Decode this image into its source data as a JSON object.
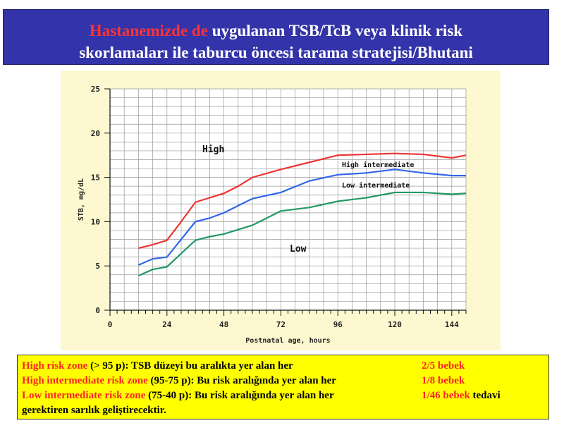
{
  "title": {
    "line1_red": "Hastanemizde de",
    "line1_rest": " uygulanan TSB/TcB veya klinik risk",
    "line2": "skorlamaları ile taburcu öncesi tarama stratejisi/Bhutani"
  },
  "chart_data": {
    "type": "line",
    "title": "",
    "xlabel": "Postnatal age, hours",
    "ylabel": "STB, mg/dL",
    "xlim": [
      0,
      150
    ],
    "ylim": [
      0,
      25
    ],
    "xticks": [
      0,
      24,
      48,
      72,
      96,
      120,
      144
    ],
    "yticks": [
      0,
      5,
      10,
      15,
      20,
      25
    ],
    "grid": true,
    "zone_labels": [
      "High",
      "High intermediate",
      "Low intermediate",
      "Low"
    ],
    "series": [
      {
        "color": "#ee3333",
        "x": [
          12,
          18,
          24,
          30,
          36,
          42,
          48,
          54,
          60,
          72,
          84,
          96,
          108,
          120,
          132,
          144,
          150
        ],
        "y": [
          7.0,
          7.4,
          7.9,
          10.0,
          12.2,
          12.7,
          13.2,
          14.0,
          15.0,
          15.9,
          16.7,
          17.5,
          17.6,
          17.7,
          17.6,
          17.2,
          17.5
        ]
      },
      {
        "color": "#3366ee",
        "x": [
          12,
          18,
          24,
          30,
          36,
          42,
          48,
          54,
          60,
          72,
          84,
          96,
          108,
          120,
          132,
          144,
          150
        ],
        "y": [
          5.1,
          5.8,
          6.0,
          8.0,
          10.0,
          10.4,
          11.0,
          11.8,
          12.6,
          13.3,
          14.6,
          15.3,
          15.5,
          15.9,
          15.5,
          15.2,
          15.2
        ]
      },
      {
        "color": "#229966",
        "x": [
          12,
          18,
          24,
          30,
          36,
          42,
          48,
          54,
          60,
          72,
          84,
          96,
          108,
          120,
          132,
          144,
          150
        ],
        "y": [
          3.9,
          4.6,
          4.9,
          6.4,
          7.9,
          8.3,
          8.6,
          9.1,
          9.6,
          11.2,
          11.6,
          12.3,
          12.7,
          13.3,
          13.3,
          13.1,
          13.2
        ]
      }
    ]
  },
  "legend": {
    "rows": [
      {
        "zone": "High risk zone",
        "desc": " (> 95 p): TSB düzeyi bu aralıkta yer alan her",
        "count": "2/5 bebek",
        "tail": ""
      },
      {
        "zone": "High intermediate risk zone",
        "desc": "  (95-75 p): Bu risk aralığında yer alan her",
        "count": "1/8 bebek",
        "tail": ""
      },
      {
        "zone": "Low intermediate risk zone",
        "desc": " (75-40 p): Bu risk aralığında yer alan her",
        "count": "1/46 bebek",
        "tail": " tedavi"
      }
    ],
    "last_line": "gerektiren sarılık geliştirecektir."
  }
}
